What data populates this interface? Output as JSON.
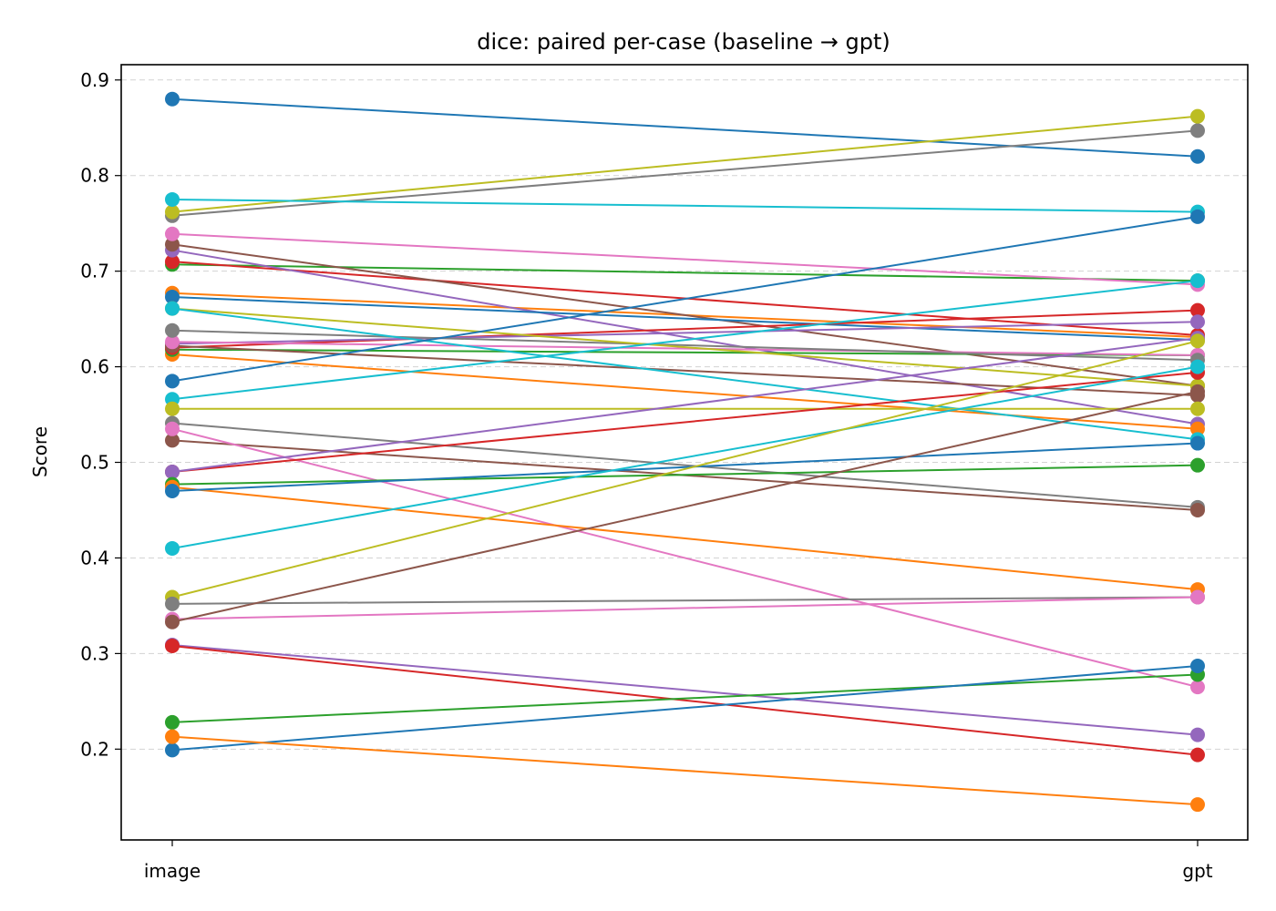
{
  "chart_data": {
    "type": "line",
    "title": "dice: paired per-case (baseline → gpt)",
    "xlabel": "",
    "ylabel": "Score",
    "categories": [
      "image",
      "gpt"
    ],
    "ylim": [
      0.105,
      0.916
    ],
    "yticks": [
      0.2,
      0.3,
      0.4,
      0.5,
      0.6,
      0.7,
      0.8,
      0.9
    ],
    "grid": "horizontal dashed",
    "palette": [
      "#1f77b4",
      "#ff7f0e",
      "#2ca02c",
      "#d62728",
      "#9467bd",
      "#8c564b",
      "#e377c2",
      "#7f7f7f",
      "#bcbd22",
      "#17becf"
    ],
    "series": [
      {
        "values": [
          0.88,
          0.82
        ],
        "color": "#1f77b4"
      },
      {
        "values": [
          0.677,
          0.631
        ],
        "color": "#ff7f0e"
      },
      {
        "values": [
          0.707,
          0.69
        ],
        "color": "#2ca02c"
      },
      {
        "values": [
          0.71,
          0.633
        ],
        "color": "#d62728"
      },
      {
        "values": [
          0.722,
          0.54
        ],
        "color": "#9467bd"
      },
      {
        "values": [
          0.728,
          0.58
        ],
        "color": "#8c564b"
      },
      {
        "values": [
          0.739,
          0.686
        ],
        "color": "#e377c2"
      },
      {
        "values": [
          0.758,
          0.847
        ],
        "color": "#7f7f7f"
      },
      {
        "values": [
          0.762,
          0.862
        ],
        "color": "#bcbd22"
      },
      {
        "values": [
          0.775,
          0.762
        ],
        "color": "#17becf"
      },
      {
        "values": [
          0.673,
          0.628
        ],
        "color": "#1f77b4"
      },
      {
        "values": [
          0.613,
          0.535
        ],
        "color": "#ff7f0e"
      },
      {
        "values": [
          0.618,
          0.612
        ],
        "color": "#2ca02c"
      },
      {
        "values": [
          0.62,
          0.659
        ],
        "color": "#d62728"
      },
      {
        "values": [
          0.624,
          0.647
        ],
        "color": "#9467bd"
      },
      {
        "values": [
          0.622,
          0.57
        ],
        "color": "#8c564b"
      },
      {
        "values": [
          0.626,
          0.612
        ],
        "color": "#e377c2"
      },
      {
        "values": [
          0.638,
          0.607
        ],
        "color": "#7f7f7f"
      },
      {
        "values": [
          0.661,
          0.58
        ],
        "color": "#bcbd22"
      },
      {
        "values": [
          0.661,
          0.524
        ],
        "color": "#17becf"
      },
      {
        "values": [
          0.585,
          0.757
        ],
        "color": "#1f77b4"
      },
      {
        "values": [
          0.566,
          0.69
        ],
        "color": "#17becf"
      },
      {
        "values": [
          0.556,
          0.556
        ],
        "color": "#bcbd22"
      },
      {
        "values": [
          0.541,
          0.453
        ],
        "color": "#7f7f7f"
      },
      {
        "values": [
          0.523,
          0.45
        ],
        "color": "#8c564b"
      },
      {
        "values": [
          0.535,
          0.265
        ],
        "color": "#e377c2"
      },
      {
        "values": [
          0.49,
          0.594
        ],
        "color": "#d62728"
      },
      {
        "values": [
          0.49,
          0.63
        ],
        "color": "#9467bd"
      },
      {
        "values": [
          0.477,
          0.497
        ],
        "color": "#2ca02c"
      },
      {
        "values": [
          0.474,
          0.367
        ],
        "color": "#ff7f0e"
      },
      {
        "values": [
          0.47,
          0.52
        ],
        "color": "#1f77b4"
      },
      {
        "values": [
          0.41,
          0.6
        ],
        "color": "#17becf"
      },
      {
        "values": [
          0.359,
          0.627
        ],
        "color": "#bcbd22"
      },
      {
        "values": [
          0.352,
          0.359
        ],
        "color": "#7f7f7f"
      },
      {
        "values": [
          0.336,
          0.359
        ],
        "color": "#e377c2"
      },
      {
        "values": [
          0.333,
          0.574
        ],
        "color": "#8c564b"
      },
      {
        "values": [
          0.309,
          0.215
        ],
        "color": "#9467bd"
      },
      {
        "values": [
          0.308,
          0.194
        ],
        "color": "#d62728"
      },
      {
        "values": [
          0.228,
          0.278
        ],
        "color": "#2ca02c"
      },
      {
        "values": [
          0.199,
          0.287
        ],
        "color": "#1f77b4"
      },
      {
        "values": [
          0.213,
          0.142
        ],
        "color": "#ff7f0e"
      }
    ]
  }
}
